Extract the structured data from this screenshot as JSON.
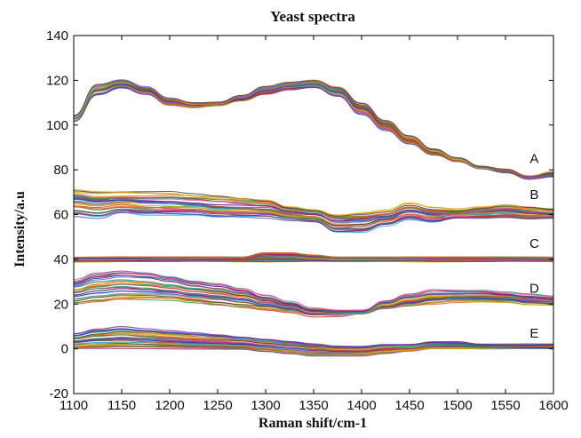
{
  "chart_data": {
    "type": "line",
    "title": "Yeast spectra",
    "xlabel": "Raman shift/cm-1",
    "ylabel": "Intensity/a.u",
    "xlim": [
      1100,
      1600
    ],
    "ylim": [
      -20,
      140
    ],
    "xticks": [
      1100,
      1150,
      1200,
      1250,
      1300,
      1350,
      1400,
      1450,
      1500,
      1550,
      1600
    ],
    "yticks": [
      -20,
      0,
      20,
      40,
      60,
      80,
      100,
      120,
      140
    ],
    "grid": false,
    "x": [
      1100,
      1125,
      1150,
      1175,
      1200,
      1225,
      1250,
      1275,
      1300,
      1325,
      1350,
      1375,
      1400,
      1425,
      1450,
      1475,
      1500,
      1525,
      1550,
      1575,
      1600
    ],
    "groups": [
      {
        "label": "A",
        "label_x": 1580,
        "label_y": 85,
        "spread": 1.5,
        "envelope_low": [
          102,
          114,
          117,
          114,
          109,
          108,
          109,
          111,
          114,
          116,
          117,
          113,
          105,
          98,
          92,
          87,
          84,
          81,
          79,
          76,
          77
        ],
        "envelope_high": [
          104,
          118,
          120,
          117,
          112,
          110,
          110,
          113,
          117,
          119,
          120,
          117,
          110,
          102,
          95,
          89,
          85,
          81,
          80,
          77,
          79
        ]
      },
      {
        "label": "B",
        "label_x": 1580,
        "label_y": 69,
        "spread": 2.5,
        "envelope_low": [
          60,
          59,
          61,
          60,
          60,
          60,
          59,
          59,
          59,
          58,
          57,
          52,
          52,
          55,
          58,
          57,
          59,
          59,
          59,
          58,
          58
        ],
        "envelope_high": [
          71,
          70,
          70,
          70,
          70,
          69,
          68,
          67,
          66,
          63,
          62,
          60,
          61,
          62,
          65,
          63,
          62,
          63,
          64,
          63,
          62
        ]
      },
      {
        "label": "C",
        "label_x": 1580,
        "label_y": 47,
        "spread": 0.6,
        "envelope_low": [
          39,
          39,
          39,
          39,
          39,
          39,
          39,
          39,
          39,
          39,
          39,
          39,
          39,
          39,
          39,
          39,
          39,
          39,
          39,
          39,
          39
        ],
        "envelope_high": [
          41,
          41,
          41,
          41,
          41,
          41,
          41,
          41,
          43,
          43,
          42,
          41,
          41,
          41,
          41,
          41,
          41,
          41,
          41,
          41,
          41
        ]
      },
      {
        "label": "D",
        "label_x": 1580,
        "label_y": 27,
        "spread": 2.0,
        "envelope_low": [
          20,
          21,
          22,
          22,
          22,
          21,
          20,
          19,
          18,
          17,
          15,
          15,
          16,
          18,
          19,
          20,
          21,
          21,
          21,
          20,
          20
        ],
        "envelope_high": [
          31,
          34,
          35,
          34,
          32,
          30,
          29,
          27,
          24,
          21,
          18,
          17,
          17,
          21,
          24,
          26,
          26,
          26,
          25,
          24,
          23
        ]
      },
      {
        "label": "E",
        "label_x": 1580,
        "label_y": 7,
        "spread": 1.2,
        "envelope_low": [
          0,
          0,
          0,
          0,
          0,
          0,
          0,
          0,
          -1,
          -2,
          -3,
          -3,
          -3,
          -2,
          -1,
          0,
          0,
          0,
          0,
          0,
          0
        ],
        "envelope_high": [
          7,
          9,
          10,
          9,
          8,
          7,
          6,
          5,
          4,
          3,
          2,
          1,
          1,
          2,
          2,
          3,
          3,
          2,
          2,
          2,
          2
        ]
      }
    ],
    "series_per_group": 28,
    "palette": [
      "#1f3fbf",
      "#d93a2b",
      "#e0a020",
      "#7a2d8c",
      "#3a9a3a",
      "#27a8d8",
      "#b51f5a",
      "#e36a1a",
      "#5b5bd6",
      "#2a8a7a",
      "#c8b600",
      "#8a4a2a",
      "#e85aa0",
      "#444444"
    ]
  }
}
